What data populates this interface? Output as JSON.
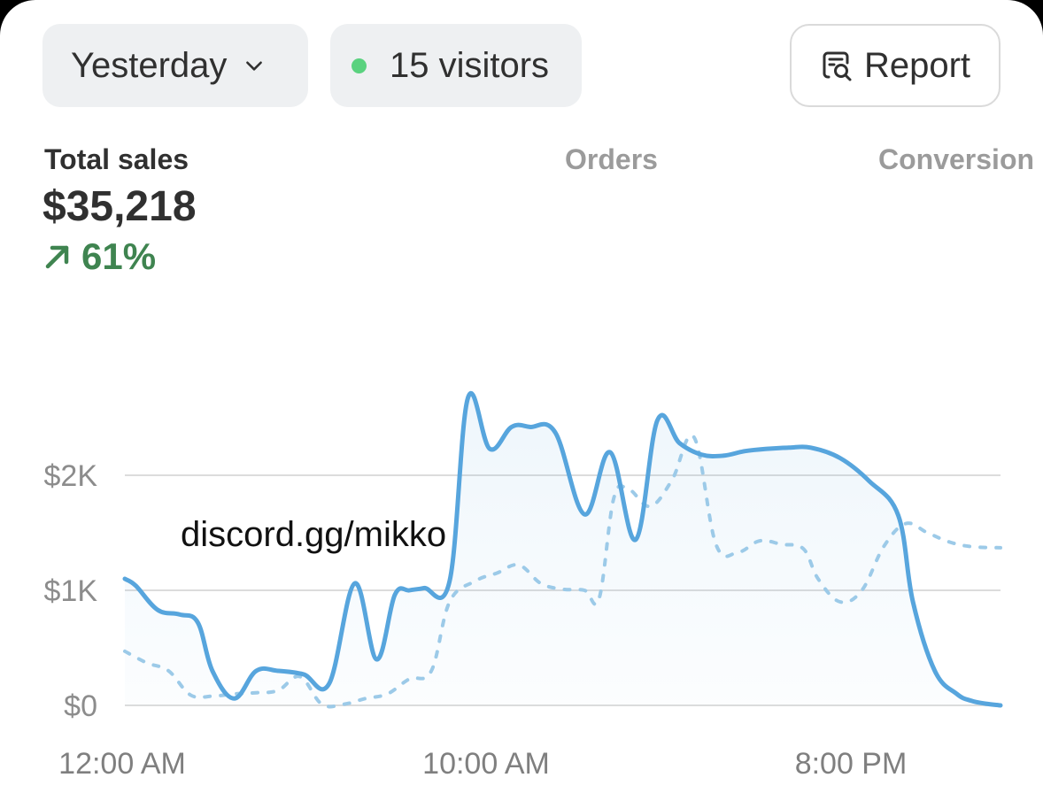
{
  "toolbar": {
    "date_filter": "Yesterday",
    "visitors": "15 visitors",
    "report_label": "Report"
  },
  "metrics": {
    "total_sales_label": "Total sales",
    "total_sales_value": "$35,218",
    "total_sales_change": "61%",
    "orders_label": "Orders",
    "conversion_label": "Conversion"
  },
  "watermark": "discord.gg/mikko",
  "colors": {
    "primary_line": "#57a5dd",
    "comparison_line": "#9ccae8",
    "positive": "#3f8450",
    "live_dot": "#5ad27f"
  },
  "chart_data": {
    "type": "area",
    "title": "",
    "xlabel": "",
    "ylabel": "",
    "x_tick_labels": [
      "12:00 AM",
      "10:00 AM",
      "8:00 PM"
    ],
    "y_tick_labels": [
      "$0",
      "$1K",
      "$2K"
    ],
    "y_ticks": [
      0,
      1000,
      2000
    ],
    "ylim": [
      0,
      2400
    ],
    "xlim": [
      0,
      24
    ],
    "grid": true,
    "legend": "none",
    "series": [
      {
        "style": "solid",
        "x": [
          0,
          0.3,
          0.9,
          1.5,
          2.0,
          2.4,
          3.0,
          3.6,
          4.2,
          4.9,
          5.6,
          6.3,
          6.9,
          7.4,
          7.8,
          8.2,
          8.9,
          9.4,
          10.0,
          10.6,
          11.1,
          11.8,
          12.6,
          13.3,
          14.0,
          14.6,
          15.2,
          15.8,
          16.4,
          17.0,
          17.6,
          18.2,
          18.8,
          19.6,
          20.4,
          21.2,
          21.6,
          22.2,
          22.8,
          23.2,
          23.6,
          24.0
        ],
        "y": [
          1100,
          1040,
          830,
          790,
          720,
          300,
          60,
          300,
          300,
          270,
          190,
          1060,
          400,
          960,
          1000,
          1020,
          1080,
          2670,
          2230,
          2420,
          2420,
          2370,
          1660,
          2200,
          1440,
          2480,
          2280,
          2180,
          2170,
          2210,
          2230,
          2240,
          2240,
          2150,
          1950,
          1650,
          900,
          300,
          100,
          40,
          15,
          0
        ]
      },
      {
        "style": "dotted",
        "x": [
          0,
          0.6,
          1.2,
          1.8,
          2.4,
          3.0,
          3.6,
          4.2,
          4.8,
          5.4,
          6.0,
          6.6,
          7.2,
          7.8,
          8.4,
          8.9,
          9.6,
          10.2,
          10.8,
          11.4,
          12.0,
          12.6,
          13.0,
          13.4,
          13.8,
          14.4,
          15.0,
          15.6,
          16.2,
          16.8,
          17.4,
          18.0,
          18.6,
          19.0,
          19.6,
          20.2,
          20.8,
          21.4,
          22.0,
          22.6,
          23.2,
          24.0
        ],
        "y": [
          470,
          370,
          300,
          90,
          80,
          100,
          110,
          130,
          250,
          10,
          10,
          60,
          100,
          230,
          300,
          900,
          1080,
          1150,
          1220,
          1060,
          1010,
          1000,
          930,
          1800,
          1880,
          1730,
          1960,
          2330,
          1400,
          1330,
          1430,
          1400,
          1360,
          1100,
          900,
          1000,
          1380,
          1580,
          1500,
          1420,
          1380,
          1370
        ]
      }
    ]
  }
}
